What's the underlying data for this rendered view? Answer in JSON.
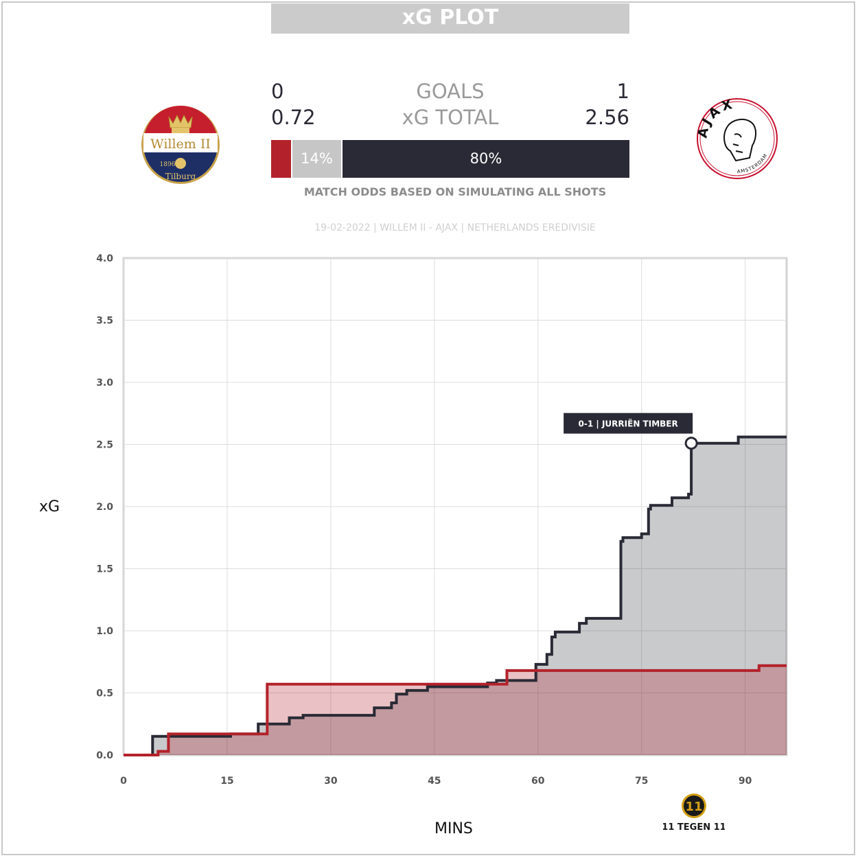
{
  "header": {
    "title": "xG PLOT"
  },
  "scoreboard": {
    "goals_label": "GOALS",
    "xg_label": "xG TOTAL",
    "home_goals": "0",
    "away_goals": "1",
    "home_xg": "0.72",
    "away_xg": "2.56"
  },
  "odds": {
    "home_pct": 6,
    "draw_pct": 14,
    "away_pct": 80,
    "home_label": "",
    "draw_label": "14%",
    "away_label": "80%",
    "note": "MATCH ODDS BASED ON SIMULATING ALL SHOTS"
  },
  "match_info": "19-02-2022 | WILLEM II - AJAX | NETHERLANDS EREDIVISIE",
  "home_logo": {
    "icon": "willem-ii-crest",
    "text_top": "Willem II",
    "text_year": "1896",
    "text_bottom": "Tilburg"
  },
  "away_logo": {
    "icon": "ajax-crest",
    "text_top": "AJAX",
    "text_bottom": "AMSTERDAM"
  },
  "brand": {
    "icon": "11tegen11-logo",
    "text": "11 TEGEN 11"
  },
  "colors": {
    "home": "#b3222a",
    "home_fill": "rgba(179,34,42,0.28)",
    "away": "#292a35",
    "away_fill": "rgba(41,42,53,0.25)",
    "draw": "#c6c6c6",
    "grid": "#dddddd",
    "axis_frame": "#d2d2d2"
  },
  "chart_data": {
    "type": "line",
    "step": true,
    "xlabel": "MINS",
    "ylabel": "xG",
    "xlim": [
      0,
      96
    ],
    "ylim": [
      0,
      4
    ],
    "xticks": [
      0,
      15,
      30,
      45,
      60,
      75,
      90
    ],
    "yticks": [
      "0.0",
      "0.5",
      "1.0",
      "1.5",
      "2.0",
      "2.5",
      "3.0",
      "3.5",
      "4.0"
    ],
    "series": [
      {
        "key": "home",
        "points": [
          [
            0,
            0
          ],
          [
            5,
            0
          ],
          [
            5,
            0.03
          ],
          [
            6.5,
            0.03
          ],
          [
            6.5,
            0.17
          ],
          [
            20.8,
            0.17
          ],
          [
            20.8,
            0.57
          ],
          [
            55.5,
            0.57
          ],
          [
            55.5,
            0.68
          ],
          [
            92,
            0.68
          ],
          [
            92,
            0.72
          ],
          [
            96,
            0.72
          ]
        ]
      },
      {
        "key": "away",
        "points": [
          [
            0,
            0
          ],
          [
            4.2,
            0
          ],
          [
            4.2,
            0.15
          ],
          [
            15.5,
            0.15
          ],
          [
            15.5,
            0.17
          ],
          [
            19.5,
            0.17
          ],
          [
            19.5,
            0.25
          ],
          [
            24,
            0.25
          ],
          [
            24,
            0.3
          ],
          [
            26,
            0.3
          ],
          [
            26,
            0.32
          ],
          [
            36.3,
            0.32
          ],
          [
            36.3,
            0.38
          ],
          [
            38.8,
            0.38
          ],
          [
            38.8,
            0.42
          ],
          [
            39.5,
            0.42
          ],
          [
            39.5,
            0.49
          ],
          [
            41,
            0.49
          ],
          [
            41,
            0.52
          ],
          [
            44,
            0.52
          ],
          [
            44,
            0.55
          ],
          [
            52.7,
            0.55
          ],
          [
            52.7,
            0.58
          ],
          [
            54,
            0.58
          ],
          [
            54,
            0.6
          ],
          [
            59.7,
            0.6
          ],
          [
            59.7,
            0.73
          ],
          [
            61.3,
            0.73
          ],
          [
            61.3,
            0.81
          ],
          [
            62,
            0.81
          ],
          [
            62,
            0.95
          ],
          [
            62.5,
            0.95
          ],
          [
            62.5,
            0.99
          ],
          [
            66,
            0.99
          ],
          [
            66,
            1.06
          ],
          [
            67,
            1.06
          ],
          [
            67,
            1.1
          ],
          [
            72,
            1.1
          ],
          [
            72,
            1.72
          ],
          [
            72.3,
            1.72
          ],
          [
            72.3,
            1.75
          ],
          [
            75,
            1.75
          ],
          [
            75,
            1.78
          ],
          [
            76,
            1.78
          ],
          [
            76,
            1.98
          ],
          [
            76.3,
            1.98
          ],
          [
            76.3,
            2.01
          ],
          [
            79.4,
            2.01
          ],
          [
            79.4,
            2.07
          ],
          [
            81.8,
            2.07
          ],
          [
            81.8,
            2.1
          ],
          [
            82.2,
            2.1
          ],
          [
            82.2,
            2.51
          ],
          [
            89,
            2.51
          ],
          [
            89,
            2.56
          ],
          [
            96,
            2.56
          ]
        ]
      }
    ],
    "annotations": [
      {
        "x": 82.2,
        "y": 2.51,
        "text": "0-1 | JURRIËN TIMBER"
      }
    ]
  }
}
